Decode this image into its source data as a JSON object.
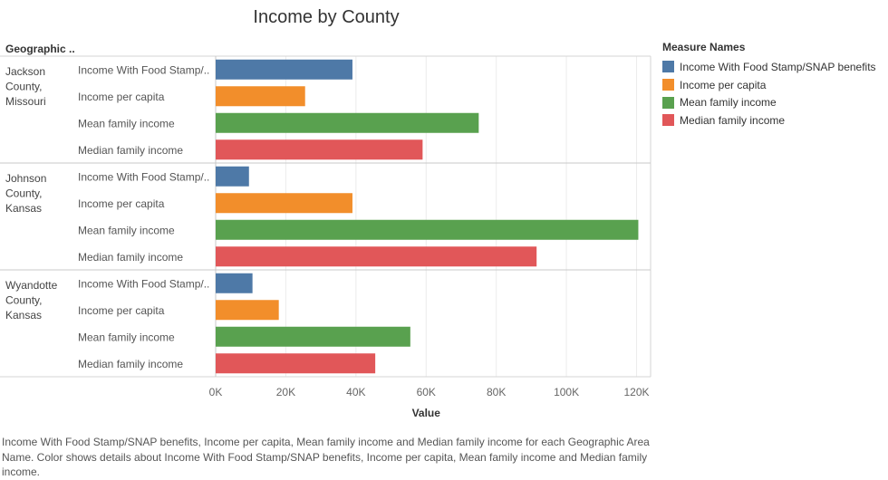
{
  "title": "Income by County",
  "row_header": "Geographic ..",
  "legend_title": "Measure Names",
  "caption": "Income With Food Stamp/SNAP benefits, Income per capita, Mean family income and Median family income for each Geographic Area Name.  Color shows details about Income With Food Stamp/SNAP benefits, Income per capita, Mean family income and Median family income.",
  "chart_data": {
    "type": "bar",
    "orientation": "horizontal",
    "title": "Income by County",
    "xlabel": "Value",
    "xlim": [
      0,
      124000
    ],
    "x_ticks": [
      0,
      20000,
      40000,
      60000,
      80000,
      100000,
      120000
    ],
    "x_tick_labels": [
      "0K",
      "20K",
      "40K",
      "60K",
      "80K",
      "100K",
      "120K"
    ],
    "measures": [
      {
        "label": "Income With Food Stamp/..",
        "legend": "Income With Food Stamp/SNAP benefits",
        "color": "#4e79a7"
      },
      {
        "label": "Income per capita",
        "legend": "Income per capita",
        "color": "#f28e2b"
      },
      {
        "label": "Mean family income",
        "legend": "Mean family income",
        "color": "#59a14f"
      },
      {
        "label": "Median family income",
        "legend": "Median family income",
        "color": "#e15759"
      }
    ],
    "groups": [
      {
        "name": [
          "Jackson",
          "County,",
          "Missouri"
        ],
        "values": [
          39000,
          25500,
          75000,
          59000
        ]
      },
      {
        "name": [
          "Johnson",
          "County,",
          "Kansas"
        ],
        "values": [
          9500,
          39000,
          120500,
          91500
        ]
      },
      {
        "name": [
          "Wyandotte",
          "County,",
          "Kansas"
        ],
        "values": [
          10500,
          18000,
          55500,
          45500
        ]
      }
    ],
    "grid": true,
    "legend_position": "right"
  }
}
